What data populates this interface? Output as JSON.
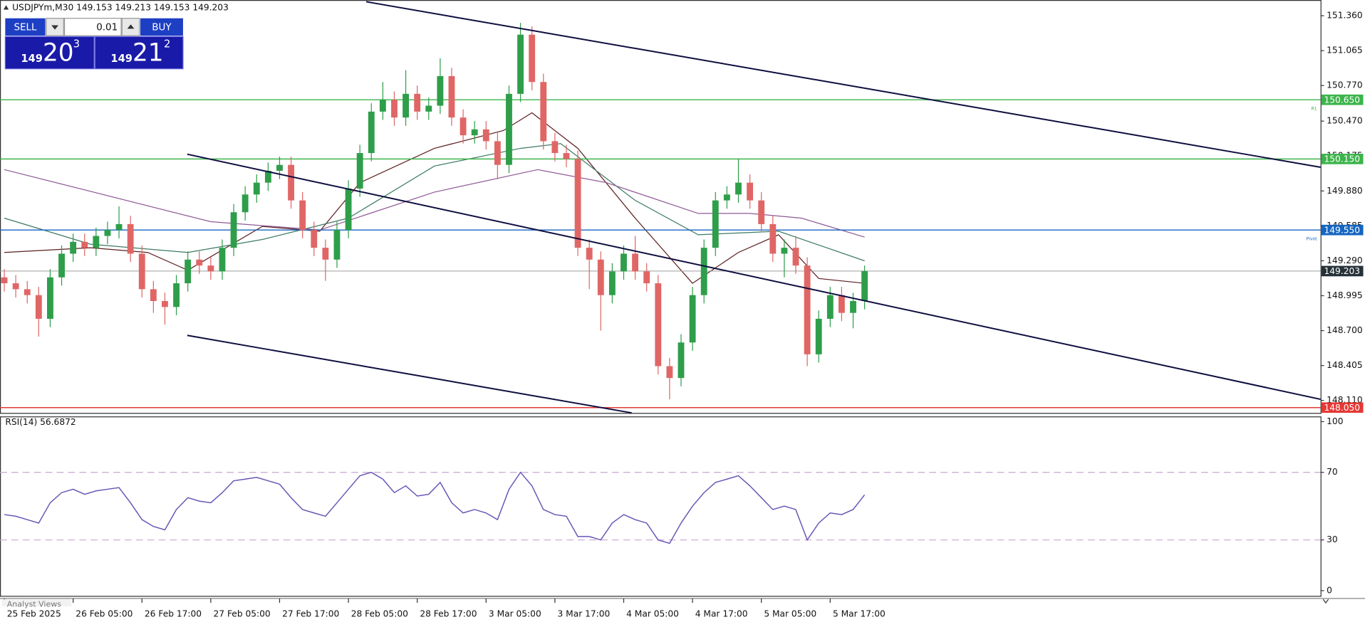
{
  "chart_data": [
    {
      "type": "candlestick",
      "title": "USDJPYm,M30  149.153 149.213 149.153 149.203",
      "up_color": "#2e9e4a",
      "down_color": "#e06666",
      "grid": false,
      "x": [
        0,
        2,
        4,
        6,
        8,
        10,
        12,
        14,
        16,
        18,
        20,
        22,
        24,
        26,
        28,
        30,
        32,
        34,
        36,
        38,
        40,
        42,
        44,
        46,
        48,
        50,
        52,
        54,
        56,
        58,
        60,
        62,
        64,
        66,
        68,
        70,
        72,
        74,
        76,
        78,
        80,
        82,
        84,
        86,
        88,
        90,
        92,
        94,
        96,
        98,
        100,
        102,
        104,
        106,
        108,
        110,
        112,
        114,
        116,
        118,
        120,
        122,
        124,
        126,
        128,
        130,
        132,
        134,
        136,
        138,
        140,
        142,
        144,
        146,
        148,
        150
      ],
      "open": [
        149.15,
        149.1,
        149.05,
        149.0,
        148.8,
        149.15,
        149.35,
        149.45,
        149.4,
        149.5,
        149.55,
        149.6,
        149.35,
        149.05,
        148.95,
        148.9,
        149.1,
        149.3,
        149.25,
        149.2,
        149.4,
        149.7,
        149.85,
        149.95,
        150.05,
        150.1,
        149.8,
        149.55,
        149.4,
        149.3,
        149.55,
        149.9,
        150.2,
        150.55,
        150.65,
        150.5,
        150.7,
        150.55,
        150.6,
        150.85,
        150.5,
        150.35,
        150.4,
        150.3,
        150.1,
        150.7,
        151.2,
        150.8,
        150.3,
        150.2,
        150.15,
        149.4,
        149.3,
        149.0,
        149.2,
        149.35,
        149.2,
        149.1,
        148.4,
        148.3,
        148.6,
        149.0,
        149.4,
        149.8,
        149.85,
        149.95,
        149.8,
        149.6,
        149.35,
        149.4,
        149.25,
        148.5,
        148.8,
        149.0,
        148.85,
        148.95
      ],
      "high": [
        149.22,
        149.17,
        149.12,
        149.07,
        149.22,
        149.42,
        149.52,
        149.52,
        149.57,
        149.62,
        149.75,
        149.67,
        149.42,
        149.12,
        149.02,
        149.17,
        149.37,
        149.37,
        149.32,
        149.47,
        149.77,
        149.92,
        150.02,
        150.12,
        150.17,
        150.17,
        149.87,
        149.62,
        149.47,
        149.62,
        149.97,
        150.27,
        150.62,
        150.8,
        150.72,
        150.9,
        150.77,
        150.67,
        151.0,
        150.92,
        150.57,
        150.47,
        150.47,
        150.37,
        150.77,
        151.3,
        151.27,
        150.87,
        150.37,
        150.27,
        150.22,
        149.47,
        149.37,
        149.27,
        149.42,
        149.5,
        149.27,
        149.17,
        148.47,
        148.67,
        149.07,
        149.47,
        149.87,
        149.92,
        150.15,
        150.02,
        149.87,
        149.67,
        149.47,
        149.5,
        149.32,
        148.87,
        149.07,
        149.07,
        149.02,
        149.25
      ],
      "low": [
        149.03,
        148.98,
        148.93,
        148.65,
        148.73,
        149.08,
        149.28,
        149.33,
        149.33,
        149.43,
        149.48,
        149.28,
        148.98,
        148.85,
        148.75,
        148.83,
        149.03,
        149.18,
        149.13,
        149.13,
        149.33,
        149.63,
        149.78,
        149.88,
        149.98,
        149.73,
        149.48,
        149.33,
        149.12,
        149.23,
        149.48,
        149.83,
        150.13,
        150.48,
        150.43,
        150.43,
        150.48,
        150.48,
        150.53,
        150.43,
        150.28,
        150.28,
        150.23,
        149.98,
        150.03,
        150.63,
        150.73,
        150.23,
        150.13,
        150.08,
        149.33,
        149.05,
        148.7,
        148.93,
        149.13,
        149.13,
        149.03,
        148.33,
        148.12,
        148.23,
        148.53,
        148.93,
        149.33,
        149.73,
        149.78,
        149.73,
        149.53,
        149.28,
        149.15,
        149.18,
        148.4,
        148.43,
        148.73,
        148.78,
        148.72,
        148.88
      ],
      "close": [
        149.1,
        149.05,
        149.0,
        148.8,
        149.15,
        149.35,
        149.45,
        149.4,
        149.5,
        149.55,
        149.6,
        149.35,
        149.05,
        148.95,
        148.9,
        149.1,
        149.3,
        149.25,
        149.2,
        149.4,
        149.7,
        149.85,
        149.95,
        150.05,
        150.1,
        149.8,
        149.55,
        149.4,
        149.3,
        149.55,
        149.9,
        150.2,
        150.55,
        150.65,
        150.5,
        150.7,
        150.55,
        150.6,
        150.85,
        150.5,
        150.35,
        150.4,
        150.3,
        150.1,
        150.7,
        151.2,
        150.8,
        150.3,
        150.2,
        150.15,
        149.4,
        149.3,
        149.0,
        149.2,
        149.35,
        149.2,
        149.1,
        148.4,
        148.3,
        148.6,
        149.0,
        149.4,
        149.8,
        149.85,
        149.95,
        149.8,
        149.6,
        149.35,
        149.4,
        149.25,
        148.5,
        148.8,
        149.0,
        148.85,
        148.95,
        149.203
      ],
      "xlim": [
        -0.75,
        229.5
      ],
      "ylim": [
        148.005,
        151.478
      ],
      "xticks": [
        {
          "value": 0,
          "label": "25 Feb 2025"
        },
        {
          "value": 12,
          "label": "26 Feb 05:00"
        },
        {
          "value": 24,
          "label": "26 Feb 17:00"
        },
        {
          "value": 36,
          "label": "27 Feb 05:00"
        },
        {
          "value": 48,
          "label": "27 Feb 17:00"
        },
        {
          "value": 60,
          "label": "28 Feb 05:00"
        },
        {
          "value": 72,
          "label": "28 Feb 17:00"
        },
        {
          "value": 84,
          "label": "3 Mar 05:00"
        },
        {
          "value": 96,
          "label": "3 Mar 17:00"
        },
        {
          "value": 108,
          "label": "4 Mar 05:00"
        },
        {
          "value": 120,
          "label": "4 Mar 17:00"
        },
        {
          "value": 132,
          "label": "5 Mar 05:00"
        },
        {
          "value": 144,
          "label": "5 Mar 17:00"
        }
      ],
      "yticks": [
        {
          "value": 151.36,
          "label": "151.360"
        },
        151.065,
        {
          "value": 150.77,
          "label": "150.770"
        },
        {
          "value": 150.47,
          "label": "150.470"
        },
        150.175,
        {
          "value": 149.88,
          "label": "149.880"
        },
        149.585,
        {
          "value": 149.29,
          "label": "149.290"
        },
        148.995,
        {
          "value": 148.7,
          "label": "148.700"
        },
        148.405,
        {
          "value": 148.11,
          "label": "148.110"
        }
      ],
      "moving_averages": [
        {
          "color": "#5c1f1f",
          "x": [
            0,
            15,
            25,
            32,
            45,
            55,
            62,
            75,
            87,
            92,
            100,
            110,
            120,
            128,
            135,
            142,
            150
          ],
          "values": [
            149.36,
            149.4,
            149.36,
            149.21,
            149.58,
            149.54,
            149.95,
            150.24,
            150.39,
            150.54,
            150.24,
            149.65,
            149.1,
            149.36,
            149.51,
            149.14,
            149.1
          ]
        },
        {
          "color": "#3d7a63",
          "x": [
            0,
            15,
            32,
            45,
            60,
            75,
            90,
            97,
            110,
            121,
            135,
            150
          ],
          "values": [
            149.65,
            149.43,
            149.36,
            149.47,
            149.65,
            150.09,
            150.24,
            150.28,
            149.8,
            149.51,
            149.54,
            149.29
          ]
        },
        {
          "color": "#8e5a95",
          "x": [
            0,
            36,
            55,
            75,
            93,
            105,
            121,
            130,
            139,
            150
          ],
          "values": [
            150.06,
            149.62,
            149.55,
            149.87,
            150.06,
            149.95,
            149.69,
            149.69,
            149.65,
            149.49
          ]
        }
      ],
      "levels": [
        {
          "value": 150.65,
          "label": "150.650",
          "name": "R1",
          "color": "#3cb44b"
        },
        {
          "value": 150.15,
          "label": "150.150",
          "color": "#3cb44b"
        },
        {
          "value": 149.55,
          "label": "149.550",
          "name": "Pivot",
          "color": "#1565c0"
        },
        {
          "value": 148.05,
          "label": "148.050",
          "color": "#e53935"
        }
      ],
      "current": {
        "value": 149.203,
        "color": "#9e9e9e",
        "box_color": "#263238"
      },
      "trendlines": [
        {
          "color": "#0d0d3f",
          "x": [
            63.1,
            229.5
          ],
          "y": [
            151.478,
            150.08
          ]
        },
        {
          "color": "#0d0d3f",
          "x": [
            31.9,
            229.5
          ],
          "y": [
            150.19,
            148.12
          ]
        },
        {
          "color": "#0d0d3f",
          "x": [
            31.9,
            109.4
          ],
          "y": [
            148.66,
            148.005
          ]
        }
      ]
    },
    {
      "type": "line",
      "title": "RSI(14) 56.6872",
      "color": "#6a55b5",
      "values": [
        45,
        44,
        42,
        40,
        52,
        58,
        60,
        57,
        59,
        60,
        61,
        52,
        42,
        38,
        36,
        48,
        55,
        53,
        52,
        58,
        65,
        66,
        67,
        65,
        63,
        55,
        48,
        46,
        44,
        52,
        60,
        68,
        70,
        66,
        58,
        62,
        56,
        57,
        64,
        52,
        46,
        48,
        46,
        42,
        60,
        70,
        62,
        48,
        45,
        44,
        32,
        32,
        30,
        40,
        45,
        42,
        40,
        30,
        28,
        40,
        50,
        58,
        64,
        66,
        68,
        62,
        55,
        48,
        50,
        48,
        30,
        40,
        46,
        45,
        48,
        56.6872
      ],
      "ylim": [
        0,
        100
      ],
      "yticks": [
        100,
        70,
        30,
        0
      ],
      "levels": [
        70,
        30
      ],
      "level_color": "#c8a8d0"
    }
  ],
  "trade_panel": {
    "sell": "SELL",
    "buy": "BUY",
    "lot": "0.01",
    "sell_price": {
      "big": "149",
      "main": "20",
      "sup": "3"
    },
    "buy_price": {
      "big": "149",
      "main": "21",
      "sup": "2"
    }
  },
  "footer": {
    "tab": "Analyst Views"
  }
}
